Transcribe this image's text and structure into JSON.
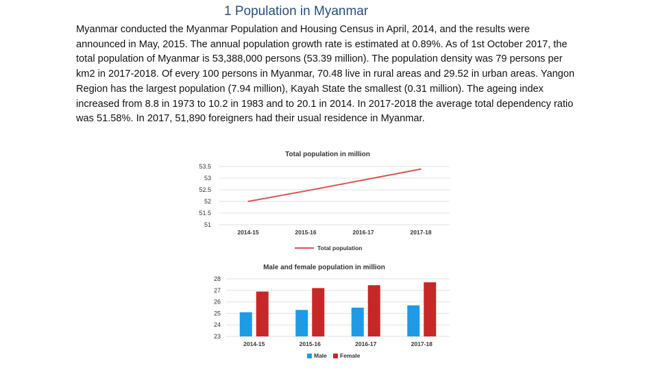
{
  "slide": {
    "title": "1 Population in Myanmar",
    "paragraph": "Myanmar conducted the Myanmar Population and Housing Census in April, 2014, and the results were announced in May, 2015. The annual population growth rate is estimated at 0.89%. As of 1st October 2017, the total population of Myanmar is 53,388,000 persons (53.39 million). The population density was 79 persons per km2 in 2017-2018. Of every 100 persons in Myanmar, 70.48 live in rural areas and 29.52 in urban areas. Yangon Region has the largest population (7.94 million), Kayah State the smallest (0.31 million). The ageing index increased from 8.8 in 1973 to 10.2 in 1983 and to 20.1 in 2014. In 2017-2018 the average total dependency ratio was 51.58%. In 2017, 51,890 foreigners had their usual residence in Myanmar."
  },
  "chart_data": [
    {
      "type": "line",
      "title": "Total population  in million",
      "categories": [
        "2014-15",
        "2015-16",
        "2016-17",
        "2017-18"
      ],
      "series": [
        {
          "name": "Total population",
          "color": "#d9534f",
          "values": [
            52.0,
            52.45,
            52.92,
            53.39
          ]
        }
      ],
      "ylim": [
        51,
        53.5
      ],
      "yticks": [
        "51",
        "51.5",
        "52",
        "52.5",
        "53",
        "53.5"
      ],
      "grid": true,
      "legend": "bottom"
    },
    {
      "type": "bar",
      "title": "Male and female population  in million",
      "categories": [
        "2014-15",
        "2015-16",
        "2016-17",
        "2017-18"
      ],
      "series": [
        {
          "name": "Male",
          "color": "#1e9be4",
          "values": [
            25.1,
            25.3,
            25.5,
            25.7
          ]
        },
        {
          "name": "Female",
          "color": "#c62828",
          "values": [
            26.9,
            27.2,
            27.45,
            27.7
          ]
        }
      ],
      "ylim": [
        23,
        28
      ],
      "yticks": [
        "23",
        "24",
        "25",
        "26",
        "27",
        "28"
      ],
      "grid": true,
      "legend": "bottom"
    }
  ]
}
